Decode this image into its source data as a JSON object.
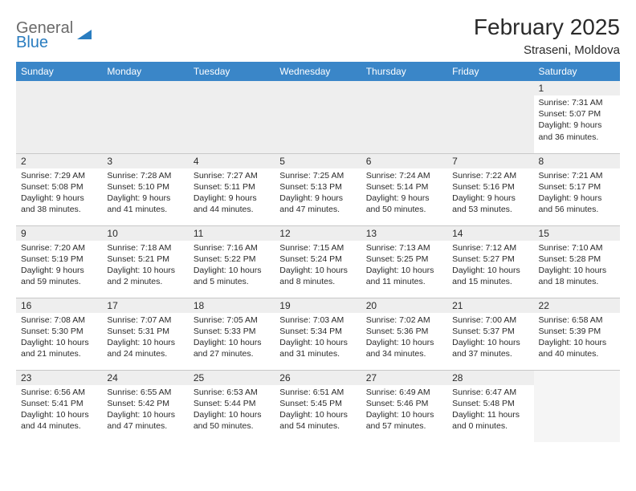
{
  "brand": {
    "general": "General",
    "blue": "Blue"
  },
  "title": "February 2025",
  "location": "Straseni, Moldova",
  "colors": {
    "header_bg": "#3a86c8",
    "header_fg": "#ffffff",
    "daynum_bg": "#eeeeee",
    "border": "#c8c8c8",
    "text": "#2a2a2a"
  },
  "day_headers": [
    "Sunday",
    "Monday",
    "Tuesday",
    "Wednesday",
    "Thursday",
    "Friday",
    "Saturday"
  ],
  "weeks": [
    [
      null,
      null,
      null,
      null,
      null,
      null,
      {
        "n": "1",
        "sr": "Sunrise: 7:31 AM",
        "ss": "Sunset: 5:07 PM",
        "dl": "Daylight: 9 hours and 36 minutes."
      }
    ],
    [
      {
        "n": "2",
        "sr": "Sunrise: 7:29 AM",
        "ss": "Sunset: 5:08 PM",
        "dl": "Daylight: 9 hours and 38 minutes."
      },
      {
        "n": "3",
        "sr": "Sunrise: 7:28 AM",
        "ss": "Sunset: 5:10 PM",
        "dl": "Daylight: 9 hours and 41 minutes."
      },
      {
        "n": "4",
        "sr": "Sunrise: 7:27 AM",
        "ss": "Sunset: 5:11 PM",
        "dl": "Daylight: 9 hours and 44 minutes."
      },
      {
        "n": "5",
        "sr": "Sunrise: 7:25 AM",
        "ss": "Sunset: 5:13 PM",
        "dl": "Daylight: 9 hours and 47 minutes."
      },
      {
        "n": "6",
        "sr": "Sunrise: 7:24 AM",
        "ss": "Sunset: 5:14 PM",
        "dl": "Daylight: 9 hours and 50 minutes."
      },
      {
        "n": "7",
        "sr": "Sunrise: 7:22 AM",
        "ss": "Sunset: 5:16 PM",
        "dl": "Daylight: 9 hours and 53 minutes."
      },
      {
        "n": "8",
        "sr": "Sunrise: 7:21 AM",
        "ss": "Sunset: 5:17 PM",
        "dl": "Daylight: 9 hours and 56 minutes."
      }
    ],
    [
      {
        "n": "9",
        "sr": "Sunrise: 7:20 AM",
        "ss": "Sunset: 5:19 PM",
        "dl": "Daylight: 9 hours and 59 minutes."
      },
      {
        "n": "10",
        "sr": "Sunrise: 7:18 AM",
        "ss": "Sunset: 5:21 PM",
        "dl": "Daylight: 10 hours and 2 minutes."
      },
      {
        "n": "11",
        "sr": "Sunrise: 7:16 AM",
        "ss": "Sunset: 5:22 PM",
        "dl": "Daylight: 10 hours and 5 minutes."
      },
      {
        "n": "12",
        "sr": "Sunrise: 7:15 AM",
        "ss": "Sunset: 5:24 PM",
        "dl": "Daylight: 10 hours and 8 minutes."
      },
      {
        "n": "13",
        "sr": "Sunrise: 7:13 AM",
        "ss": "Sunset: 5:25 PM",
        "dl": "Daylight: 10 hours and 11 minutes."
      },
      {
        "n": "14",
        "sr": "Sunrise: 7:12 AM",
        "ss": "Sunset: 5:27 PM",
        "dl": "Daylight: 10 hours and 15 minutes."
      },
      {
        "n": "15",
        "sr": "Sunrise: 7:10 AM",
        "ss": "Sunset: 5:28 PM",
        "dl": "Daylight: 10 hours and 18 minutes."
      }
    ],
    [
      {
        "n": "16",
        "sr": "Sunrise: 7:08 AM",
        "ss": "Sunset: 5:30 PM",
        "dl": "Daylight: 10 hours and 21 minutes."
      },
      {
        "n": "17",
        "sr": "Sunrise: 7:07 AM",
        "ss": "Sunset: 5:31 PM",
        "dl": "Daylight: 10 hours and 24 minutes."
      },
      {
        "n": "18",
        "sr": "Sunrise: 7:05 AM",
        "ss": "Sunset: 5:33 PM",
        "dl": "Daylight: 10 hours and 27 minutes."
      },
      {
        "n": "19",
        "sr": "Sunrise: 7:03 AM",
        "ss": "Sunset: 5:34 PM",
        "dl": "Daylight: 10 hours and 31 minutes."
      },
      {
        "n": "20",
        "sr": "Sunrise: 7:02 AM",
        "ss": "Sunset: 5:36 PM",
        "dl": "Daylight: 10 hours and 34 minutes."
      },
      {
        "n": "21",
        "sr": "Sunrise: 7:00 AM",
        "ss": "Sunset: 5:37 PM",
        "dl": "Daylight: 10 hours and 37 minutes."
      },
      {
        "n": "22",
        "sr": "Sunrise: 6:58 AM",
        "ss": "Sunset: 5:39 PM",
        "dl": "Daylight: 10 hours and 40 minutes."
      }
    ],
    [
      {
        "n": "23",
        "sr": "Sunrise: 6:56 AM",
        "ss": "Sunset: 5:41 PM",
        "dl": "Daylight: 10 hours and 44 minutes."
      },
      {
        "n": "24",
        "sr": "Sunrise: 6:55 AM",
        "ss": "Sunset: 5:42 PM",
        "dl": "Daylight: 10 hours and 47 minutes."
      },
      {
        "n": "25",
        "sr": "Sunrise: 6:53 AM",
        "ss": "Sunset: 5:44 PM",
        "dl": "Daylight: 10 hours and 50 minutes."
      },
      {
        "n": "26",
        "sr": "Sunrise: 6:51 AM",
        "ss": "Sunset: 5:45 PM",
        "dl": "Daylight: 10 hours and 54 minutes."
      },
      {
        "n": "27",
        "sr": "Sunrise: 6:49 AM",
        "ss": "Sunset: 5:46 PM",
        "dl": "Daylight: 10 hours and 57 minutes."
      },
      {
        "n": "28",
        "sr": "Sunrise: 6:47 AM",
        "ss": "Sunset: 5:48 PM",
        "dl": "Daylight: 11 hours and 0 minutes."
      },
      null
    ]
  ]
}
